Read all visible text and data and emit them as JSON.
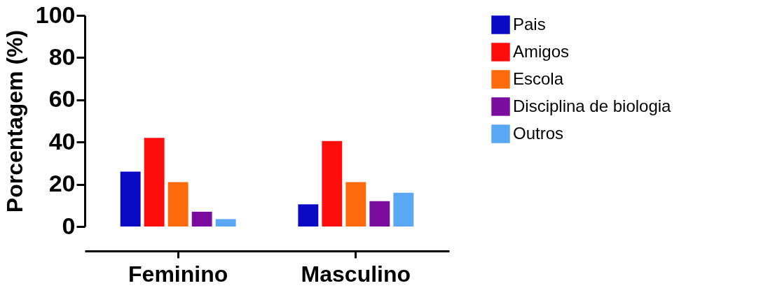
{
  "chart_data": {
    "type": "bar",
    "ylabel": "Porcentagem (%)",
    "categories": [
      "Feminino",
      "Masculino"
    ],
    "series": [
      {
        "name": "Pais",
        "color": "#0a0ac4",
        "values": [
          26,
          10.5
        ]
      },
      {
        "name": "Amigos",
        "color": "#ff0d0d",
        "values": [
          42,
          40.5
        ]
      },
      {
        "name": "Escola",
        "color": "#ff6a0d",
        "values": [
          21,
          21
        ]
      },
      {
        "name": "Disciplina de biologia",
        "color": "#7a0d9e",
        "values": [
          7,
          12
        ]
      },
      {
        "name": "Outros",
        "color": "#5aa8f5",
        "values": [
          3.5,
          16
        ]
      }
    ],
    "ylim": [
      0,
      100
    ],
    "yticks": [
      0,
      20,
      40,
      60,
      80,
      100
    ],
    "grid": false,
    "legend": "right"
  }
}
